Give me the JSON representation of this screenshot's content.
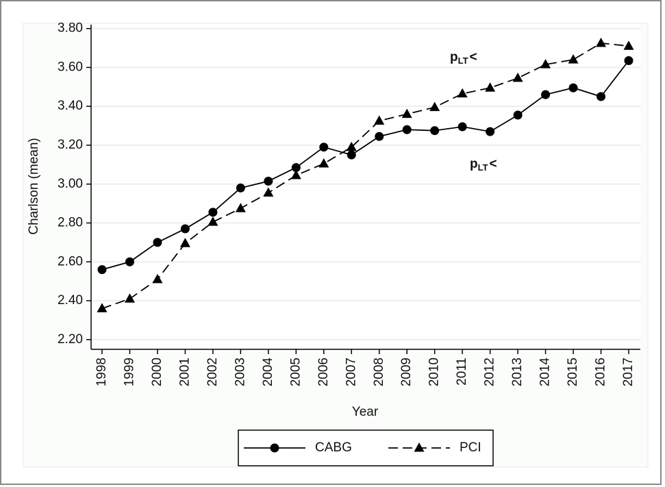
{
  "chart_data": {
    "type": "line",
    "x_label": "Year",
    "y_label": "Charlson (mean)",
    "categories": [
      "1998",
      "1999",
      "2000",
      "2001",
      "2002",
      "2003",
      "2004",
      "2005",
      "2006",
      "2007",
      "2008",
      "2009",
      "2010",
      "2011",
      "2012",
      "2013",
      "2014",
      "2015",
      "2016",
      "2017"
    ],
    "series": [
      {
        "name": "CABG",
        "color": "#000000",
        "line_style": "solid",
        "marker": "circle",
        "values": [
          2.56,
          2.6,
          2.7,
          2.77,
          2.855,
          2.98,
          3.015,
          3.085,
          3.19,
          3.15,
          3.245,
          3.28,
          3.275,
          3.295,
          3.27,
          3.355,
          3.46,
          3.495,
          3.45,
          3.635
        ]
      },
      {
        "name": "PCI",
        "color": "#000000",
        "line_style": "dashed",
        "marker": "triangle",
        "values": [
          2.36,
          2.41,
          2.51,
          2.695,
          2.805,
          2.875,
          2.955,
          3.045,
          3.105,
          3.19,
          3.325,
          3.36,
          3.395,
          3.465,
          3.495,
          3.545,
          3.615,
          3.64,
          3.725,
          3.71
        ]
      }
    ],
    "ylim": [
      2.15,
      3.82
    ],
    "yticks": [
      {
        "value": 2.2,
        "label": "2.20"
      },
      {
        "value": 2.4,
        "label": "2.40"
      },
      {
        "value": 2.6,
        "label": "2.60"
      },
      {
        "value": 2.8,
        "label": "2.80"
      },
      {
        "value": 3.0,
        "label": "3.00"
      },
      {
        "value": 3.2,
        "label": "3.20"
      },
      {
        "value": 3.4,
        "label": "3.40"
      },
      {
        "value": 3.6,
        "label": "3.60"
      },
      {
        "value": 3.8,
        "label": "3.80"
      }
    ],
    "grid": true,
    "legend_position": "bottom",
    "annotations": [
      {
        "main": "p",
        "sub": "LT",
        "rest": "<"
      },
      {
        "main": "p",
        "sub": "LT",
        "rest": "<"
      }
    ]
  }
}
